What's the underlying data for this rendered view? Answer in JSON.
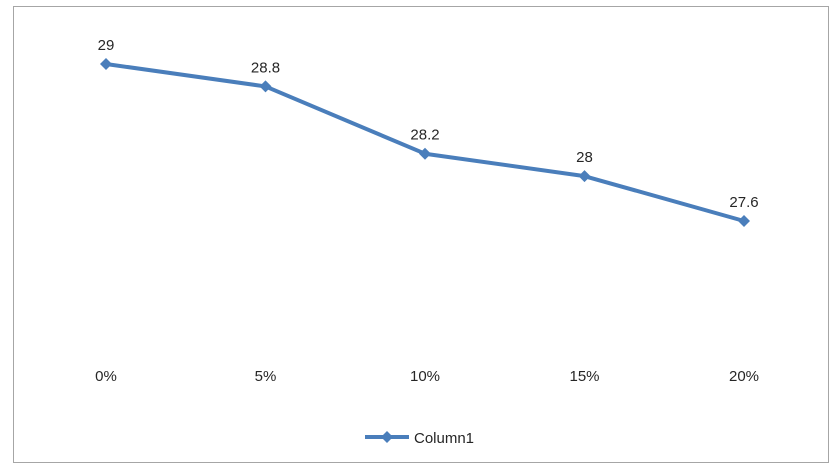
{
  "chart_data": {
    "type": "line",
    "categories": [
      "0%",
      "5%",
      "10%",
      "15%",
      "20%"
    ],
    "series": [
      {
        "name": "Column1",
        "values": [
          29,
          28.8,
          28.2,
          28,
          27.6
        ],
        "color": "#4a7ebb",
        "marker": "diamond"
      }
    ],
    "data_labels": [
      "29",
      "28.8",
      "28.2",
      "28",
      "27.6"
    ],
    "title": "",
    "xlabel": "",
    "ylabel": "",
    "y_axis_visible": false,
    "grid": false,
    "legend": {
      "position": "bottom",
      "entries": [
        "Column1"
      ]
    }
  }
}
